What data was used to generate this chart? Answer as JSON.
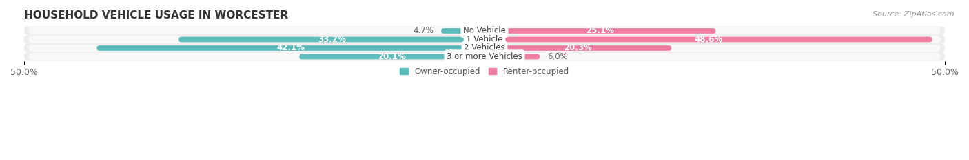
{
  "title": "HOUSEHOLD VEHICLE USAGE IN WORCESTER",
  "source": "Source: ZipAtlas.com",
  "categories": [
    "No Vehicle",
    "1 Vehicle",
    "2 Vehicles",
    "3 or more Vehicles"
  ],
  "owner_values": [
    4.7,
    33.2,
    42.1,
    20.1
  ],
  "renter_values": [
    25.1,
    48.6,
    20.3,
    6.0
  ],
  "owner_color": "#5bbcbb",
  "renter_color": "#f07ca0",
  "bar_height": 0.62,
  "xlim": [
    -50,
    50
  ],
  "xticks": [
    -50,
    50
  ],
  "xticklabels": [
    "50.0%",
    "50.0%"
  ],
  "legend_owner": "Owner-occupied",
  "legend_renter": "Renter-occupied",
  "title_fontsize": 11,
  "source_fontsize": 8,
  "label_fontsize": 8.5,
  "tick_fontsize": 9,
  "background_color": "#ffffff",
  "row_bg_color": "#ececec",
  "row_inner_color": "#f8f8f8"
}
